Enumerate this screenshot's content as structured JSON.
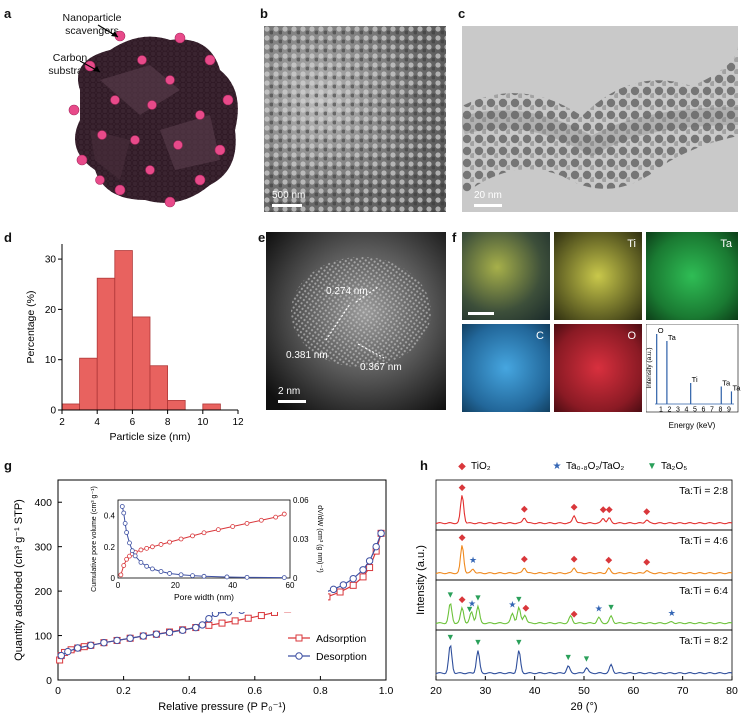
{
  "panels": {
    "a": {
      "letter": "a",
      "label_np": "Nanoparticle scavengers",
      "label_np_1": "Nanoparticle",
      "label_np_2": "scavengers",
      "label_c_1": "Carbon",
      "label_c_2": "substrate"
    },
    "b": {
      "letter": "b",
      "scale": "500 nm"
    },
    "c": {
      "letter": "c",
      "scale": "20 nm"
    },
    "d": {
      "letter": "d"
    },
    "e": {
      "letter": "e",
      "scale": "2 nm",
      "d1": "0.274 nm",
      "d2": "0.381 nm",
      "d3": "0.367 nm"
    },
    "f": {
      "letter": "f",
      "maps": [
        "Ti",
        "Ta",
        "C",
        "O"
      ]
    },
    "g": {
      "letter": "g"
    },
    "h": {
      "letter": "h"
    }
  },
  "chart_data": [
    {
      "id": "d",
      "type": "bar",
      "xlabel": "Particle size (nm)",
      "ylabel": "Percentage (%)",
      "xlim": [
        2,
        12
      ],
      "ylim": [
        0,
        33
      ],
      "xticks": [
        2,
        4,
        6,
        8,
        10,
        12
      ],
      "yticks": [
        0,
        10,
        20,
        30
      ],
      "bins": [
        [
          2,
          3
        ],
        [
          3,
          4
        ],
        [
          4,
          5
        ],
        [
          5,
          6
        ],
        [
          6,
          7
        ],
        [
          7,
          8
        ],
        [
          8,
          9
        ],
        [
          10,
          11
        ]
      ],
      "values": [
        1.2,
        10.3,
        26.2,
        31.7,
        18.5,
        8.8,
        1.9,
        1.2
      ],
      "color": "#e8625f"
    },
    {
      "id": "f-eds",
      "type": "line",
      "xlabel": "Energy (keV)",
      "ylabel": "Intensity (a.u.)",
      "xticks": [
        1,
        2,
        3,
        4,
        5,
        6,
        7,
        8,
        9
      ],
      "peaks": [
        {
          "x": 0.5,
          "h": 1.0,
          "label": "O"
        },
        {
          "x": 1.7,
          "h": 0.9,
          "label": "Ta"
        },
        {
          "x": 4.5,
          "h": 0.3,
          "label": "Ti"
        },
        {
          "x": 8.1,
          "h": 0.25,
          "label": "Ta"
        },
        {
          "x": 9.3,
          "h": 0.18,
          "label": "Ta"
        }
      ]
    },
    {
      "id": "g",
      "type": "line",
      "xlabel": "Relative pressure (P P₀⁻¹)",
      "ylabel": "Quantity adsorbed (cm³ g⁻¹ STP)",
      "xlim": [
        0,
        1
      ],
      "ylim": [
        0,
        450
      ],
      "xticks": [
        0,
        0.2,
        0.4,
        0.6,
        0.8,
        1.0
      ],
      "yticks": [
        0,
        100,
        200,
        300,
        400
      ],
      "legend": "bottom-right",
      "series": [
        {
          "name": "Adsorption",
          "color": "#d9373b",
          "marker": "square",
          "x": [
            0.005,
            0.01,
            0.02,
            0.04,
            0.06,
            0.08,
            0.1,
            0.14,
            0.18,
            0.22,
            0.26,
            0.3,
            0.34,
            0.38,
            0.42,
            0.46,
            0.5,
            0.54,
            0.58,
            0.62,
            0.66,
            0.7,
            0.74,
            0.78,
            0.82,
            0.86,
            0.9,
            0.93,
            0.95,
            0.97,
            0.985
          ],
          "y": [
            45,
            55,
            62,
            68,
            72,
            75,
            78,
            84,
            89,
            94,
            99,
            103,
            108,
            113,
            118,
            123,
            128,
            133,
            139,
            145,
            152,
            160,
            168,
            177,
            187,
            198,
            213,
            232,
            253,
            290,
            330
          ]
        },
        {
          "name": "Desorption",
          "color": "#3f51a3",
          "marker": "circle",
          "x": [
            0.985,
            0.97,
            0.95,
            0.93,
            0.9,
            0.87,
            0.84,
            0.8,
            0.76,
            0.72,
            0.68,
            0.64,
            0.6,
            0.56,
            0.52,
            0.48,
            0.46,
            0.44,
            0.42,
            0.38,
            0.34,
            0.3,
            0.26,
            0.22,
            0.18,
            0.14,
            0.1,
            0.06,
            0.03,
            0.01
          ],
          "y": [
            330,
            300,
            268,
            248,
            228,
            214,
            204,
            194,
            186,
            180,
            174,
            168,
            162,
            157,
            153,
            150,
            138,
            124,
            118,
            112,
            107,
            103,
            99,
            94,
            89,
            84,
            78,
            72,
            64,
            55
          ]
        }
      ],
      "inset": {
        "xlabel": "Pore width (nm)",
        "ylabel_left": "Cumulative pore volume (cm³ g⁻¹)",
        "ylabel_right": "dV/dW (cm³ (g nm)⁻¹)",
        "xlim": [
          0,
          60
        ],
        "ylim_left": [
          0,
          0.5
        ],
        "ylim_right": [
          0,
          0.06
        ],
        "xticks": [
          0,
          20,
          40,
          60
        ],
        "yticks_left": [
          0,
          0.2,
          0.4
        ],
        "yticks_right": [
          0,
          0.03,
          0.06
        ],
        "series": [
          {
            "name": "cumulative",
            "axis": "left",
            "color": "#d9373b",
            "x": [
              1,
              2,
              3,
              4,
              5,
              6,
              8,
              10,
              12,
              15,
              18,
              22,
              26,
              30,
              35,
              40,
              45,
              50,
              55,
              58
            ],
            "y": [
              0.02,
              0.08,
              0.12,
              0.14,
              0.155,
              0.165,
              0.18,
              0.19,
              0.2,
              0.215,
              0.23,
              0.25,
              0.27,
              0.29,
              0.31,
              0.33,
              0.35,
              0.37,
              0.39,
              0.41
            ]
          },
          {
            "name": "dV/dW",
            "axis": "right",
            "color": "#3f51a3",
            "x": [
              1.5,
              2,
              2.5,
              3,
              4,
              5,
              6,
              8,
              10,
              12,
              15,
              18,
              22,
              26,
              30,
              38,
              45,
              58
            ],
            "y": [
              0.055,
              0.05,
              0.042,
              0.035,
              0.027,
              0.021,
              0.017,
              0.012,
              0.009,
              0.007,
              0.005,
              0.0035,
              0.0025,
              0.0018,
              0.0013,
              0.0008,
              0.0005,
              0.0003
            ]
          }
        ]
      }
    },
    {
      "id": "h",
      "type": "line",
      "xlabel": "2θ (°)",
      "ylabel": "Intensity (a.u.)",
      "xlim": [
        20,
        80
      ],
      "xticks": [
        20,
        30,
        40,
        50,
        60,
        70,
        80
      ],
      "legend": [
        {
          "name": "TiO₂",
          "marker": "◆",
          "color": "#d9373b"
        },
        {
          "name": "Ta₀.₈O₂/TaO₂",
          "marker": "★",
          "color": "#3466b5"
        },
        {
          "name": "Ta₂O₅",
          "marker": "▼",
          "color": "#2aa05a"
        }
      ],
      "series": [
        {
          "name": "Ta:Ti = 2:8",
          "color": "#e3302f",
          "peaks": [
            [
              25.3,
              1.0
            ],
            [
              37.9,
              0.2
            ],
            [
              48.0,
              0.28
            ],
            [
              53.9,
              0.18
            ],
            [
              55.1,
              0.18
            ],
            [
              62.7,
              0.12
            ]
          ],
          "markers": [
            {
              "type": "◆",
              "x": 25.3
            },
            {
              "type": "◆",
              "x": 37.9
            },
            {
              "type": "◆",
              "x": 48.0
            },
            {
              "type": "◆",
              "x": 53.9
            },
            {
              "type": "◆",
              "x": 55.1
            },
            {
              "type": "◆",
              "x": 62.7
            }
          ]
        },
        {
          "name": "Ta:Ti = 4:6",
          "color": "#f08a1f",
          "peaks": [
            [
              25.3,
              1.0
            ],
            [
              27.5,
              0.15
            ],
            [
              37.9,
              0.2
            ],
            [
              48.0,
              0.2
            ],
            [
              55.0,
              0.17
            ],
            [
              62.7,
              0.1
            ]
          ],
          "markers": [
            {
              "type": "◆",
              "x": 25.3
            },
            {
              "type": "★",
              "x": 27.5
            },
            {
              "type": "◆",
              "x": 37.9
            },
            {
              "type": "◆",
              "x": 48.0
            },
            {
              "type": "◆",
              "x": 55.0
            },
            {
              "type": "◆",
              "x": 62.7
            }
          ]
        },
        {
          "name": "Ta:Ti = 6:4",
          "color": "#6cc23a",
          "peaks": [
            [
              22.9,
              0.7
            ],
            [
              25.3,
              0.55
            ],
            [
              27.2,
              0.4
            ],
            [
              28.5,
              0.6
            ],
            [
              35.5,
              0.35
            ],
            [
              36.8,
              0.55
            ],
            [
              38,
              0.3
            ],
            [
              47.3,
              0.25
            ],
            [
              53.0,
              0.2
            ],
            [
              55.5,
              0.25
            ],
            [
              67.8,
              0.05
            ]
          ],
          "markers": [
            {
              "type": "▼",
              "x": 22.9
            },
            {
              "type": "◆",
              "x": 25.3
            },
            {
              "type": "▼",
              "x": 26.8
            },
            {
              "type": "★",
              "x": 27.3
            },
            {
              "type": "▼",
              "x": 28.5
            },
            {
              "type": "★",
              "x": 35.5
            },
            {
              "type": "▼",
              "x": 36.8
            },
            {
              "type": "◆",
              "x": 38.2
            },
            {
              "type": "◆",
              "x": 48.0
            },
            {
              "type": "★",
              "x": 53.0
            },
            {
              "type": "▼",
              "x": 55.5
            },
            {
              "type": "★",
              "x": 67.8
            }
          ]
        },
        {
          "name": "Ta:Ti = 8:2",
          "color": "#2f4f9c",
          "peaks": [
            [
              22.9,
              1.0
            ],
            [
              28.5,
              0.8
            ],
            [
              36.8,
              0.8
            ],
            [
              46.8,
              0.25
            ],
            [
              50.5,
              0.2
            ],
            [
              55.5,
              0.3
            ]
          ],
          "markers": [
            {
              "type": "▼",
              "x": 22.9
            },
            {
              "type": "▼",
              "x": 28.5
            },
            {
              "type": "▼",
              "x": 36.8
            },
            {
              "type": "▼",
              "x": 46.8
            },
            {
              "type": "▼",
              "x": 50.5
            }
          ]
        }
      ]
    }
  ]
}
